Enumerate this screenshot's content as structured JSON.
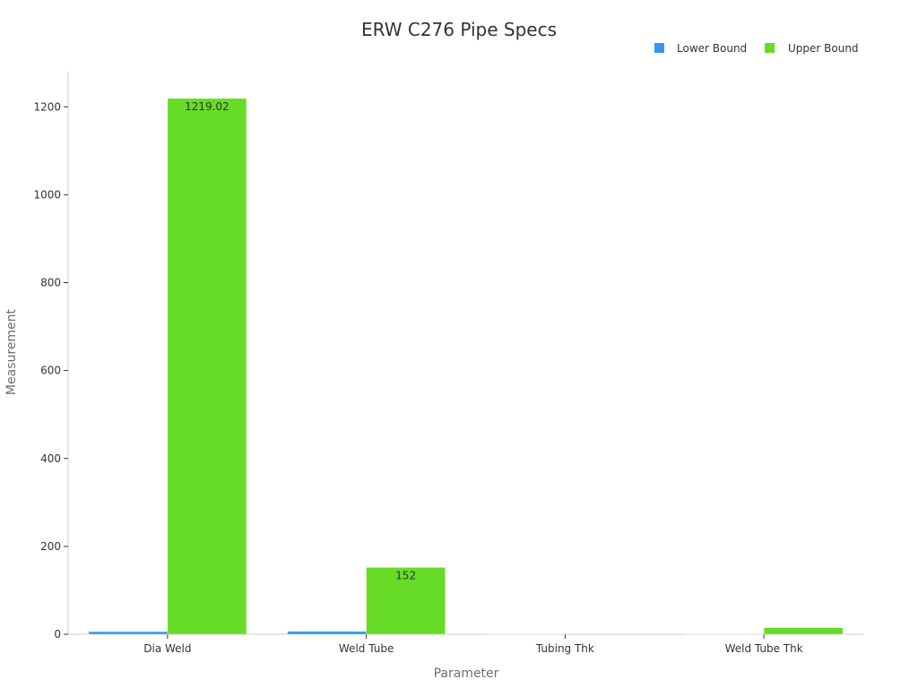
{
  "chart_data": {
    "type": "bar",
    "title": "ERW C276 Pipe Specs",
    "xlabel": "Parameter",
    "ylabel": "Measurement",
    "categories": [
      "Dia Weld",
      "Weld Tube",
      "Tubing Thk",
      "Weld Tube Thk"
    ],
    "series": [
      {
        "name": "Lower Bound",
        "color": "#3498f0",
        "values": [
          6,
          6.35,
          0.5,
          0.5
        ]
      },
      {
        "name": "Upper Bound",
        "color": "#66dc26",
        "values": [
          1219.02,
          152,
          0,
          15
        ]
      }
    ],
    "data_labels": [
      {
        "series": 1,
        "index": 0,
        "text": "1219.02"
      },
      {
        "series": 1,
        "index": 1,
        "text": "152"
      }
    ],
    "ylim": [
      0,
      1280
    ],
    "yticks": [
      0,
      200,
      400,
      600,
      800,
      1000,
      1200
    ],
    "grid": false,
    "legend_position": "top-right"
  }
}
